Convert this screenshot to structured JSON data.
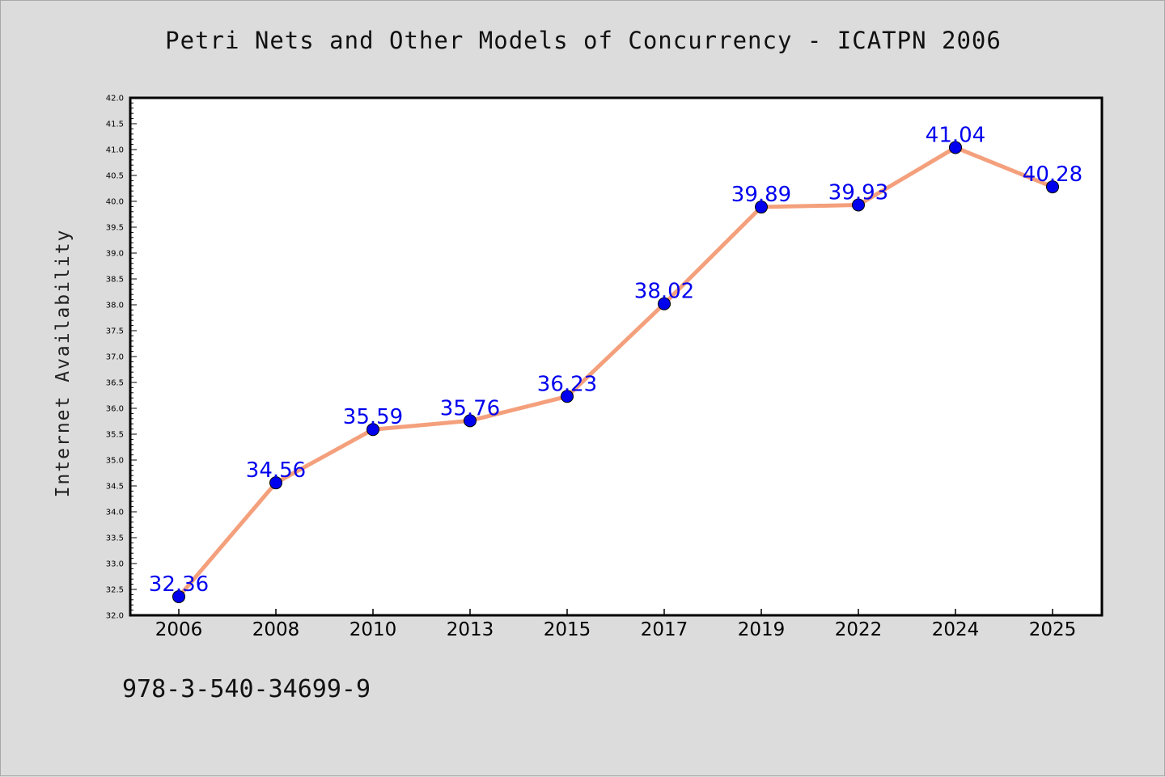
{
  "title": "Petri Nets and Other Models of Concurrency - ICATPN 2006",
  "footer": "978-3-540-34699-9",
  "chart_data": {
    "type": "line",
    "title": "Petri Nets and Other Models of Concurrency - ICATPN 2006",
    "xlabel": "",
    "ylabel": "Internet Availability",
    "categories": [
      "2006",
      "2008",
      "2010",
      "2013",
      "2015",
      "2017",
      "2019",
      "2022",
      "2024",
      "2025"
    ],
    "series": [
      {
        "values": [
          32.36,
          34.56,
          35.59,
          35.76,
          36.23,
          38.02,
          39.89,
          39.93,
          41.04,
          40.28
        ],
        "line_color": "#f4a07c",
        "marker_color": "#0000ee"
      }
    ],
    "data_labels": [
      "32.36",
      "34.56",
      "35.59",
      "35.76",
      "36.23",
      "38.02",
      "39.89",
      "39.93",
      "41.04",
      "40.28"
    ],
    "ylim": [
      32.0,
      42.0
    ],
    "y_ticks": [
      "32.0",
      "32.5",
      "33.0",
      "33.5",
      "34.0",
      "34.5",
      "35.0",
      "35.5",
      "36.0",
      "36.5",
      "37.0",
      "37.5",
      "38.0",
      "38.5",
      "39.0",
      "39.5",
      "40.0",
      "40.5",
      "41.0",
      "41.5",
      "42.0"
    ],
    "grid": false,
    "legend": "none"
  }
}
